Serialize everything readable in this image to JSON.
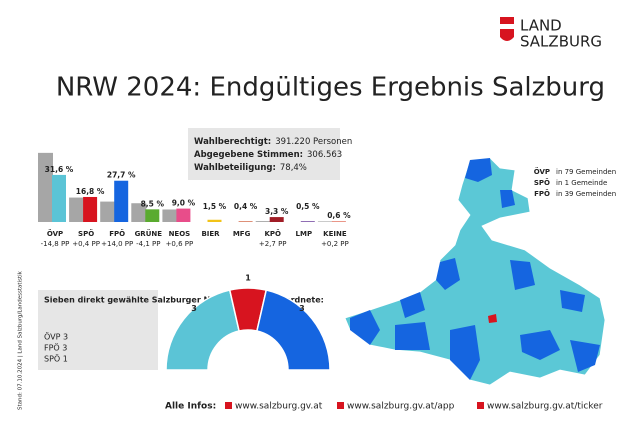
{
  "header": {
    "logo_line1": "LAND",
    "logo_line2": "SALZBURG",
    "title": "NRW 2024: Endgültiges Ergebnis Salzburg"
  },
  "side_note": "Stand: 07.10.2024 | Land Salzburg/Landesstatistik",
  "stats": [
    {
      "label": "Wahlberechtigt:",
      "value": "391.220 Personen"
    },
    {
      "label": "Abgegebene Stimmen:",
      "value": "306.563"
    },
    {
      "label": "Wahlbeteiligung:",
      "value": "78,4%"
    }
  ],
  "chart_data": [
    {
      "type": "bar",
      "categories": [
        "ÖVP",
        "SPÖ",
        "FPÖ",
        "GRÜNE",
        "NEOS",
        "BIER",
        "MFG",
        "KPÖ",
        "LMP",
        "KEINE"
      ],
      "colors": [
        "#5bc4d6",
        "#d7141f",
        "#1565e0",
        "#5aab2f",
        "#e84d8a",
        "#f2c318",
        "#c8441e",
        "#a01d26",
        "#6a3d9a",
        "#e88a7a"
      ],
      "change_labels": [
        "-14,8 PP",
        "+0,4 PP",
        "+14,0 PP",
        "-4,1 PP",
        "+0,6 PP",
        null,
        null,
        "+2,7 PP",
        null,
        "+0,2 PP"
      ],
      "series": [
        {
          "color": "#a6a6a6",
          "values": [
            46.4,
            16.4,
            13.7,
            12.6,
            8.4,
            null,
            null,
            0.6,
            null,
            0.4
          ]
        },
        {
          "values": [
            31.6,
            16.8,
            27.7,
            8.5,
            9.0,
            1.5,
            0.4,
            3.3,
            0.5,
            0.6
          ],
          "value_labels": [
            "31,6 %",
            "16,8 %",
            "27,7 %",
            "8,5 %",
            "9,0 %",
            "1,5 %",
            "0,4 %",
            "3,3 %",
            "0,5 %",
            "0,6 %"
          ]
        }
      ]
    },
    {
      "type": "semicircle",
      "title": "Sieben direkt gewählte Salzburger Nationalrats-abgeordnete:",
      "lines": [
        "ÖVP 3",
        "FPÖ 3",
        "SPÖ 1"
      ],
      "categories": [
        "ÖVP",
        "SPÖ",
        "FPÖ"
      ],
      "colors": [
        "#5bc4d6",
        "#d7141f",
        "#1565e0"
      ],
      "values": [
        3,
        1,
        3
      ]
    }
  ],
  "map_legend": [
    {
      "party": "ÖVP",
      "text": "in 79 Gemeinden",
      "color": "#5bc4d6"
    },
    {
      "party": "SPÖ",
      "text": "in 1 Gemeinde",
      "color": "#d7141f"
    },
    {
      "party": "FPÖ",
      "text": "in 39 Gemeinden",
      "color": "#1565e0"
    }
  ],
  "footer": {
    "label": "Alle Infos:",
    "links": [
      "www.salzburg.gv.at",
      "www.salzburg.gv.at/app",
      "www.salzburg.gv.at/ticker"
    ]
  }
}
